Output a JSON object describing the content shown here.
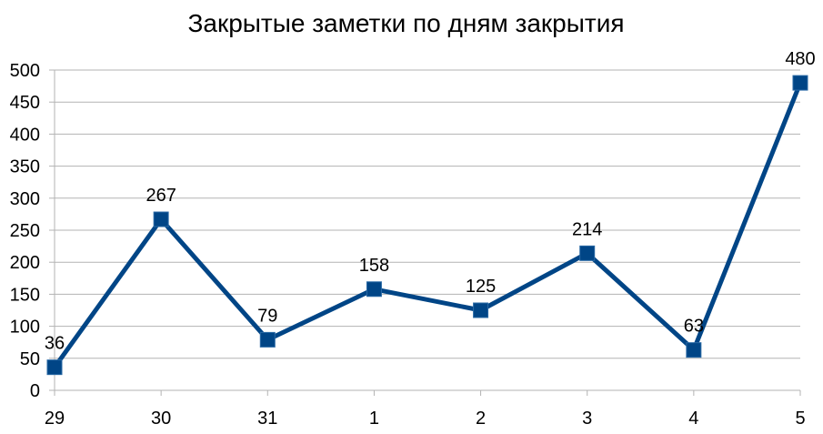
{
  "chart_data": {
    "type": "line",
    "title": "Закрытые заметки по дням закрытия",
    "xlabel": "",
    "ylabel": "",
    "categories": [
      "29",
      "30",
      "31",
      "1",
      "2",
      "3",
      "4",
      "5"
    ],
    "series": [
      {
        "values": [
          36,
          267,
          79,
          158,
          125,
          214,
          63,
          480
        ],
        "color": "#004586",
        "marker": "square"
      }
    ],
    "ylim": [
      0,
      500
    ],
    "yticks": [
      0,
      50,
      100,
      150,
      200,
      250,
      300,
      350,
      400,
      450,
      500
    ],
    "grid": true,
    "legend": "none",
    "data_labels": true
  }
}
